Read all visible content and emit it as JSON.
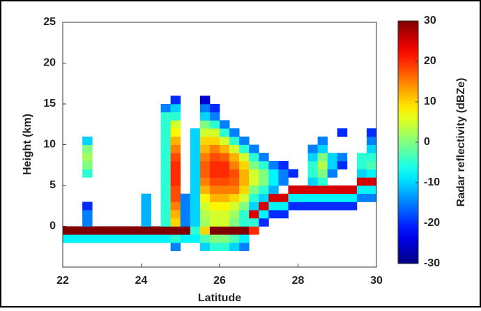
{
  "chart_data": {
    "type": "heatmap",
    "x_label": "Latitude",
    "y_label": "Height (km)",
    "colorbar_label": "Radar reflectivity (dBZe)",
    "colormap": "jet",
    "xlim": [
      22,
      30
    ],
    "ylim": [
      -5,
      25
    ],
    "xticks": [
      22,
      24,
      26,
      28,
      30
    ],
    "yticks": [
      0,
      5,
      10,
      15,
      20,
      25
    ],
    "clim": [
      -30,
      30
    ],
    "cticks": [
      -30,
      -20,
      -10,
      0,
      10,
      20,
      30
    ],
    "x_edges": [
      22,
      22.25,
      22.5,
      22.75,
      23,
      23.25,
      23.5,
      23.75,
      24,
      24.25,
      24.5,
      24.75,
      25,
      25.25,
      25.5,
      25.75,
      26,
      26.25,
      26.5,
      26.75,
      27,
      27.25,
      27.5,
      27.75,
      28,
      28.25,
      28.5,
      28.75,
      29,
      29.25,
      29.5,
      29.75,
      30
    ],
    "y_edges": [
      -3,
      -2,
      -1,
      0,
      1,
      2,
      3,
      4,
      5,
      6,
      7,
      8,
      9,
      10,
      11,
      12,
      13,
      14,
      15,
      16
    ],
    "z": [
      [
        null,
        null,
        null,
        null,
        null,
        null,
        null,
        null,
        null,
        null,
        null,
        -15,
        null,
        null,
        -10,
        -5,
        -5,
        -10,
        -15,
        null,
        null,
        null,
        null,
        null,
        null,
        null,
        null,
        null,
        null,
        null,
        null,
        null
      ],
      [
        -8,
        -8,
        -8,
        -8,
        -8,
        -8,
        -8,
        -8,
        -8,
        -8,
        -8,
        -5,
        -8,
        -8,
        -3,
        0,
        0,
        -3,
        -8,
        null,
        null,
        null,
        null,
        null,
        null,
        null,
        null,
        null,
        null,
        null,
        null,
        null
      ],
      [
        30,
        30,
        30,
        30,
        30,
        30,
        30,
        30,
        30,
        30,
        30,
        30,
        30,
        -5,
        10,
        30,
        30,
        30,
        30,
        20,
        null,
        null,
        null,
        null,
        null,
        null,
        null,
        null,
        null,
        null,
        null,
        null
      ],
      [
        null,
        null,
        -15,
        null,
        null,
        null,
        null,
        null,
        -12,
        null,
        -5,
        10,
        -15,
        -10,
        2,
        5,
        5,
        0,
        -5,
        -5,
        -20,
        null,
        null,
        null,
        null,
        null,
        null,
        null,
        null,
        null,
        null,
        null
      ],
      [
        null,
        null,
        -15,
        null,
        null,
        null,
        null,
        null,
        -12,
        null,
        -5,
        12,
        -15,
        -10,
        3,
        5,
        5,
        2,
        -5,
        25,
        -8,
        -20,
        -20,
        null,
        null,
        null,
        null,
        null,
        null,
        null,
        null,
        null
      ],
      [
        null,
        null,
        -20,
        null,
        null,
        null,
        null,
        null,
        -12,
        null,
        -5,
        15,
        -15,
        -10,
        5,
        8,
        8,
        5,
        0,
        -10,
        25,
        -8,
        -8,
        -20,
        -20,
        -20,
        -20,
        -20,
        -20,
        -20,
        null,
        null
      ],
      [
        null,
        null,
        null,
        null,
        null,
        null,
        null,
        null,
        -12,
        null,
        -5,
        18,
        -15,
        -10,
        8,
        12,
        12,
        10,
        5,
        -5,
        -10,
        25,
        25,
        -8,
        -8,
        -8,
        -8,
        -8,
        -8,
        -8,
        -15,
        -15
      ],
      [
        null,
        null,
        null,
        null,
        null,
        null,
        null,
        null,
        null,
        null,
        -5,
        18,
        null,
        -10,
        12,
        15,
        15,
        15,
        10,
        0,
        -5,
        -12,
        null,
        25,
        25,
        25,
        25,
        25,
        25,
        25,
        -8,
        -8
      ],
      [
        null,
        null,
        null,
        null,
        null,
        null,
        null,
        null,
        null,
        null,
        -5,
        20,
        null,
        -10,
        15,
        18,
        18,
        17,
        12,
        5,
        0,
        -8,
        -15,
        null,
        null,
        -10,
        -5,
        null,
        null,
        null,
        25,
        25
      ],
      [
        null,
        null,
        -5,
        null,
        null,
        null,
        null,
        null,
        null,
        null,
        -5,
        20,
        null,
        -10,
        17,
        20,
        20,
        18,
        12,
        5,
        0,
        -8,
        -15,
        -20,
        null,
        -5,
        0,
        -15,
        null,
        null,
        -10,
        -8
      ],
      [
        null,
        null,
        0,
        null,
        null,
        null,
        null,
        null,
        null,
        null,
        -5,
        20,
        null,
        -10,
        17,
        20,
        20,
        15,
        10,
        0,
        -5,
        -15,
        -20,
        null,
        null,
        -5,
        3,
        -10,
        -20,
        null,
        -5,
        -3
      ],
      [
        null,
        null,
        2,
        null,
        null,
        null,
        null,
        null,
        null,
        null,
        -5,
        18,
        null,
        -10,
        15,
        18,
        17,
        12,
        5,
        -5,
        -15,
        null,
        null,
        null,
        null,
        -10,
        0,
        -10,
        -15,
        null,
        -5,
        -5
      ],
      [
        null,
        null,
        0,
        null,
        null,
        null,
        null,
        null,
        null,
        null,
        -5,
        15,
        null,
        -10,
        12,
        15,
        12,
        5,
        -5,
        -15,
        null,
        null,
        null,
        null,
        null,
        -15,
        -10,
        null,
        null,
        null,
        null,
        -10
      ],
      [
        null,
        null,
        -10,
        null,
        null,
        null,
        null,
        null,
        null,
        null,
        -5,
        12,
        null,
        -10,
        10,
        10,
        5,
        -5,
        -15,
        null,
        null,
        null,
        null,
        null,
        null,
        null,
        -15,
        null,
        null,
        null,
        null,
        -15
      ],
      [
        null,
        null,
        null,
        null,
        null,
        null,
        null,
        null,
        null,
        null,
        -5,
        8,
        null,
        -10,
        5,
        5,
        -5,
        -15,
        null,
        null,
        null,
        null,
        null,
        null,
        null,
        null,
        null,
        null,
        -20,
        null,
        null,
        -20
      ],
      [
        null,
        null,
        null,
        null,
        null,
        null,
        null,
        null,
        null,
        null,
        -5,
        5,
        null,
        null,
        0,
        -5,
        -15,
        null,
        null,
        null,
        null,
        null,
        null,
        null,
        null,
        null,
        null,
        null,
        null,
        null,
        null,
        null
      ],
      [
        null,
        null,
        null,
        null,
        null,
        null,
        null,
        null,
        null,
        null,
        -5,
        -5,
        null,
        null,
        -10,
        -15,
        null,
        null,
        null,
        null,
        null,
        null,
        null,
        null,
        null,
        null,
        null,
        null,
        null,
        null,
        null,
        null
      ],
      [
        null,
        null,
        null,
        null,
        null,
        null,
        null,
        null,
        null,
        null,
        -15,
        -10,
        null,
        null,
        -15,
        -20,
        null,
        null,
        null,
        null,
        null,
        null,
        null,
        null,
        null,
        null,
        null,
        null,
        null,
        null,
        null,
        null
      ],
      [
        null,
        null,
        null,
        null,
        null,
        null,
        null,
        null,
        null,
        null,
        null,
        -20,
        null,
        null,
        -25,
        null,
        null,
        null,
        null,
        null,
        null,
        null,
        null,
        null,
        null,
        null,
        null,
        null,
        null,
        null,
        null,
        null
      ]
    ]
  }
}
